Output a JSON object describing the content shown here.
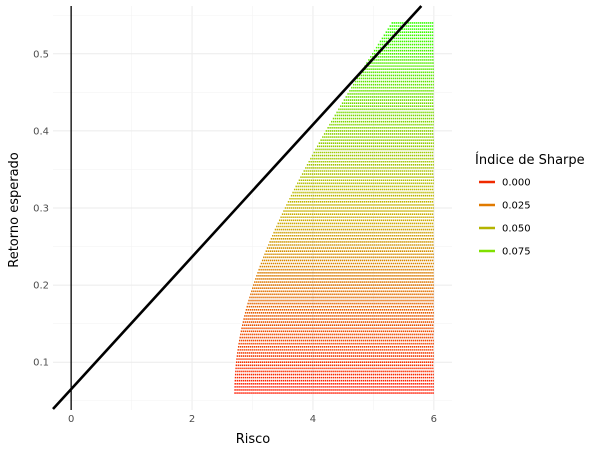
{
  "chart_data": {
    "type": "scatter",
    "xlabel": "Risco",
    "ylabel": "Retorno esperado",
    "xlim": [
      -0.3,
      6.3
    ],
    "ylim": [
      0.038,
      0.562
    ],
    "x_ticks": [
      0,
      2,
      4,
      6
    ],
    "x_tick_labels": [
      "0",
      "2",
      "4",
      "6"
    ],
    "y_ticks": [
      0.1,
      0.2,
      0.3,
      0.4,
      0.5
    ],
    "y_tick_labels": [
      "0.1",
      "0.2",
      "0.3",
      "0.4",
      "0.5"
    ],
    "grid": true,
    "vertical_reference_line": {
      "x": 0
    },
    "capital_market_line": {
      "intercept": 0.065,
      "slope": 0.0858
    },
    "frontier": {
      "min_risk": 2.7,
      "min_return": 0.06,
      "max_return": 0.54,
      "tangency": {
        "x": 5.3,
        "y": 0.54
      },
      "max_risk": 6.0,
      "return_step": 0.004,
      "risk_step": 0.05
    },
    "color_scale": {
      "title": "Índice de Sharpe",
      "low_color": "#ff1a00",
      "mid_color": "#c8b400",
      "high_color": "#33ff00",
      "legend": [
        {
          "label": "0.000",
          "color": "#ef2a00"
        },
        {
          "label": "0.025",
          "color": "#e07a00"
        },
        {
          "label": "0.050",
          "color": "#b4b400"
        },
        {
          "label": "0.075",
          "color": "#80e000"
        }
      ]
    },
    "legend_position": "right"
  }
}
